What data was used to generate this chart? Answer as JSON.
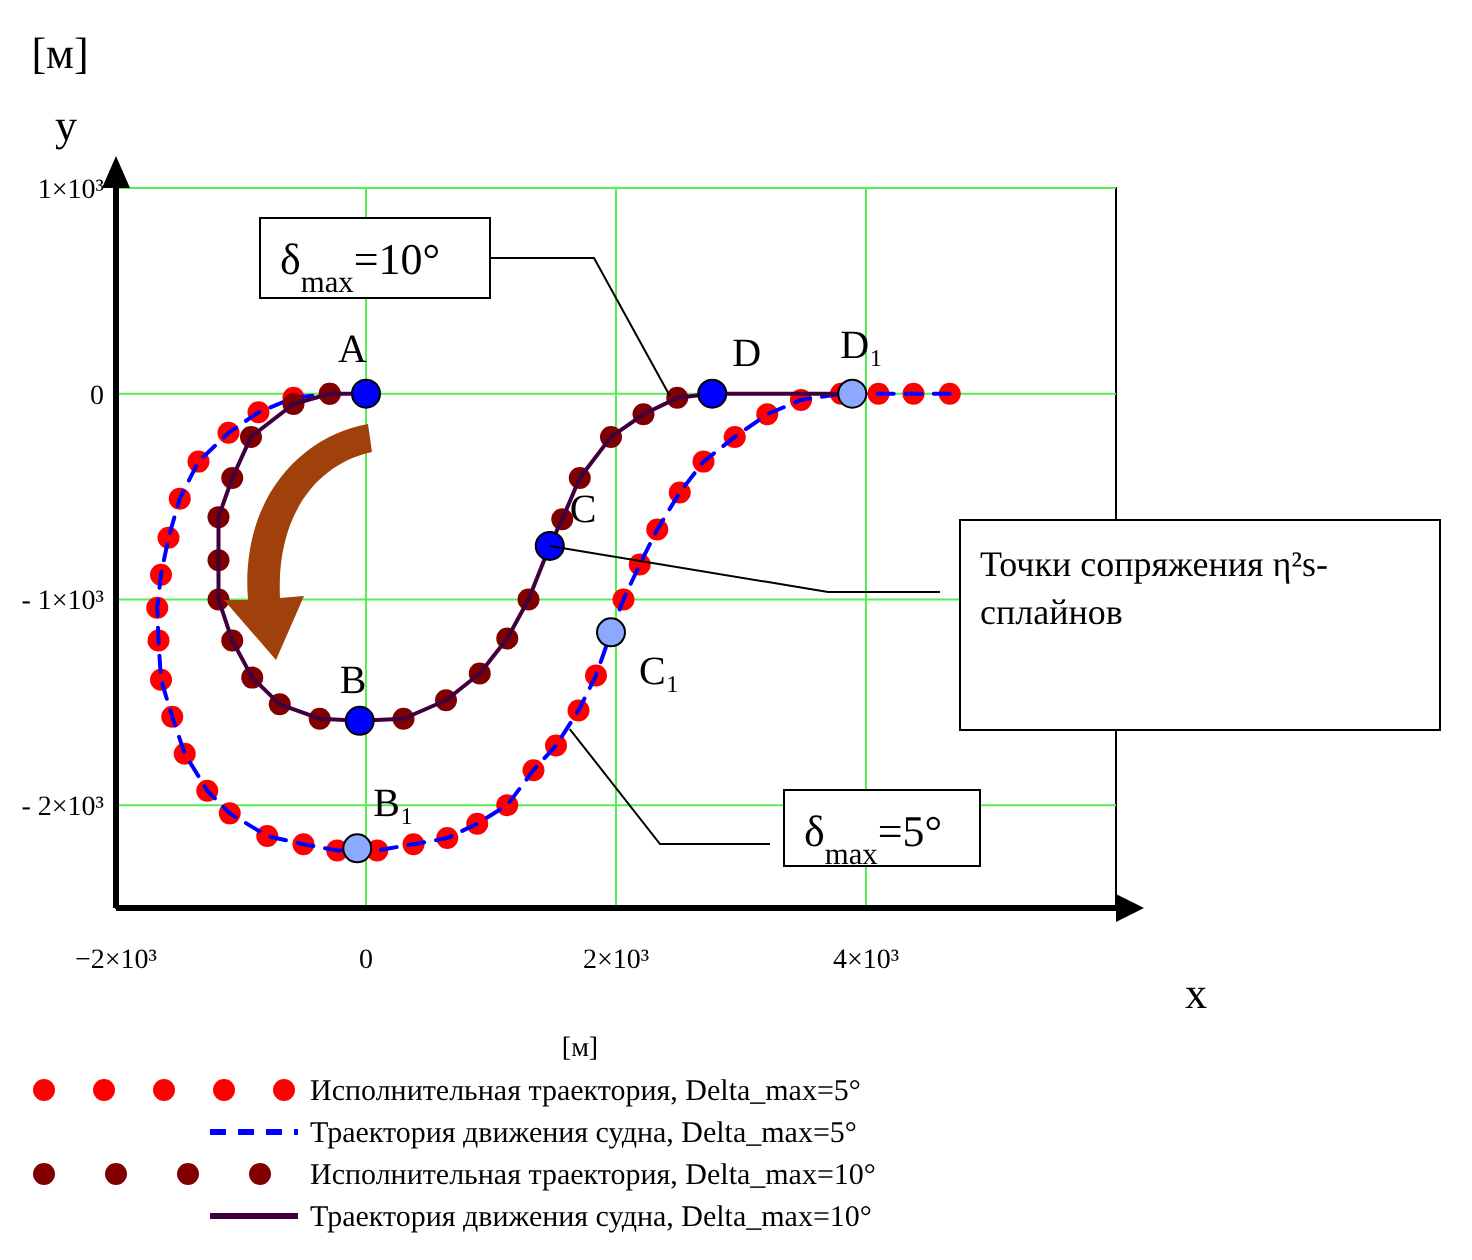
{
  "chart_data": {
    "type": "scatter",
    "xlabel": "x",
    "ylabel": "y",
    "xlim": [
      -2000,
      6000
    ],
    "ylim": [
      -2500,
      1000
    ],
    "xticks": [
      {
        "value": -2000,
        "label": "−2×10³"
      },
      0,
      {
        "value": 2000,
        "label": "2×10³"
      },
      {
        "value": 4000,
        "label": "4×10³"
      }
    ],
    "yticks": [
      {
        "value": 1000,
        "label": "1×10³"
      },
      0,
      {
        "value": -1000,
        "label": "- 1×10³"
      },
      {
        "value": -2000,
        "label": "- 2×10³"
      }
    ],
    "grid": true,
    "legend": "bottom",
    "series": [
      {
        "name": "Исполнительная траектория, Delta_max=5°",
        "marker": "circle",
        "color": "#ff0000",
        "x": [
          4670,
          4380,
          4100,
          3800,
          3480,
          3210,
          2950,
          2700,
          2510,
          2330,
          2190,
          2060,
          1840,
          1700,
          1520,
          1340,
          1130,
          890,
          650,
          380,
          90,
          -230,
          -500,
          -790,
          -1090,
          -1270,
          -1450,
          -1550,
          -1640,
          -1660,
          -1670,
          -1640,
          -1580,
          -1490,
          -1340,
          -1100,
          -860,
          -580,
          -290
        ],
        "values": [
          0,
          0,
          0,
          0,
          -30,
          -100,
          -210,
          -330,
          -480,
          -660,
          -830,
          -1000,
          -1370,
          -1540,
          -1710,
          -1830,
          -2000,
          -2090,
          -2160,
          -2190,
          -2220,
          -2220,
          -2190,
          -2150,
          -2040,
          -1930,
          -1750,
          -1570,
          -1390,
          -1200,
          -1040,
          -880,
          -700,
          -510,
          -330,
          -190,
          -90,
          -20,
          0
        ]
      },
      {
        "name": "Траектория движения судна, Delta_max=5°",
        "type": "line",
        "line_style": "dashed",
        "color": "#0000ff",
        "x": [
          4670,
          4380,
          4100,
          3800,
          3480,
          3210,
          2950,
          2700,
          2510,
          2330,
          2190,
          2060,
          1960,
          1840,
          1700,
          1520,
          1340,
          1130,
          890,
          650,
          380,
          90,
          -230,
          -500,
          -790,
          -1090,
          -1270,
          -1450,
          -1550,
          -1640,
          -1660,
          -1670,
          -1640,
          -1580,
          -1490,
          -1340,
          -1100,
          -860,
          -580,
          -290,
          0
        ],
        "values": [
          0,
          0,
          0,
          0,
          -30,
          -100,
          -210,
          -330,
          -480,
          -660,
          -830,
          -1000,
          -1160,
          -1370,
          -1540,
          -1710,
          -1830,
          -2000,
          -2090,
          -2160,
          -2190,
          -2220,
          -2220,
          -2190,
          -2150,
          -2040,
          -1930,
          -1750,
          -1570,
          -1390,
          -1200,
          -1040,
          -880,
          -700,
          -510,
          -330,
          -190,
          -90,
          -20,
          0,
          0
        ]
      },
      {
        "name": "Исполнительная траектория, Delta_max=10°",
        "marker": "circle",
        "color": "#800000",
        "x": [
          -290,
          -580,
          -920,
          -1070,
          -1180,
          -1180,
          -1180,
          -1070,
          -910,
          -690,
          -370,
          300,
          640,
          910,
          1130,
          1300,
          1570,
          1710,
          1960,
          2220,
          2490
        ],
        "values": [
          0,
          -50,
          -210,
          -410,
          -600,
          -810,
          -1000,
          -1200,
          -1380,
          -1510,
          -1580,
          -1580,
          -1490,
          -1360,
          -1190,
          -1000,
          -610,
          -410,
          -210,
          -100,
          -20
        ]
      },
      {
        "name": "Траектория движения судна, Delta_max=10°",
        "type": "line",
        "line_style": "solid",
        "color": "#400040",
        "x": [
          0,
          -290,
          -580,
          -920,
          -1070,
          -1180,
          -1180,
          -1180,
          -1070,
          -910,
          -690,
          -370,
          -50,
          300,
          640,
          910,
          1130,
          1300,
          1470,
          1570,
          1710,
          1960,
          2220,
          2490,
          2770,
          3800
        ],
        "values": [
          0,
          0,
          -50,
          -210,
          -410,
          -600,
          -810,
          -1000,
          -1200,
          -1380,
          -1510,
          -1580,
          -1590,
          -1580,
          -1490,
          -1360,
          -1190,
          -1000,
          -740,
          -610,
          -410,
          -210,
          -100,
          -20,
          0,
          0
        ]
      },
      {
        "marker": "circle",
        "color": "#0000ff",
        "x": [
          0,
          -50,
          1470,
          2770
        ],
        "values": [
          0,
          -1590,
          -740,
          0
        ]
      },
      {
        "marker": "circle",
        "color": "#8ca8ff",
        "x": [
          -70,
          1960,
          3890
        ],
        "values": [
          -2210,
          -1160,
          0
        ]
      }
    ],
    "annotations": [
      {
        "text": "A",
        "x": 0,
        "y": 0
      },
      {
        "text": "B",
        "x": -50,
        "y": -1590
      },
      {
        "text": "C",
        "x": 1470,
        "y": -740
      },
      {
        "text": "D",
        "x": 2770,
        "y": 0
      },
      {
        "text": "B₁",
        "x": -70,
        "y": -2210
      },
      {
        "text": "C₁",
        "x": 1960,
        "y": -1160
      },
      {
        "text": "D₁",
        "x": 3890,
        "y": 0
      },
      {
        "text": "δ$_{max}$=10°",
        "x": 2430,
        "y": -10
      },
      {
        "text": "δ$_{max}$=5°",
        "x": 1630,
        "y": -1630
      },
      {
        "text": "Точки сопряжения η²s-сплайнов",
        "x": 1470,
        "y": -740
      },
      "[м]",
      "[м]"
    ]
  }
}
